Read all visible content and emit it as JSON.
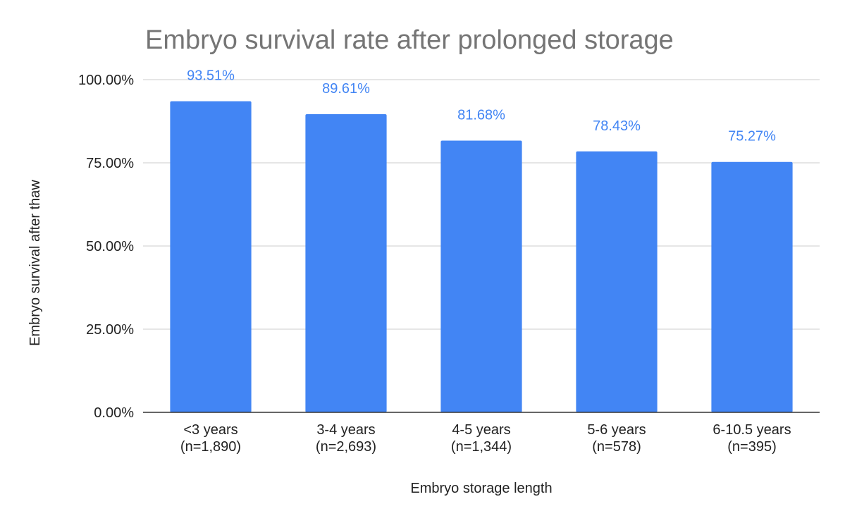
{
  "chart_data": {
    "type": "bar",
    "title": "Embryo survival rate after prolonged storage",
    "xlabel": "Embryo storage length",
    "ylabel": "Embryo survival after thaw",
    "categories": [
      [
        "<3 years",
        "(n=1,890)"
      ],
      [
        "3-4 years",
        "(n=2,693)"
      ],
      [
        "4-5 years",
        "(n=1,344)"
      ],
      [
        "5-6 years",
        "(n=578)"
      ],
      [
        "6-10.5 years",
        "(n=395)"
      ]
    ],
    "values": [
      93.51,
      89.61,
      81.68,
      78.43,
      75.27
    ],
    "value_labels": [
      "93.51%",
      "89.61%",
      "81.68%",
      "78.43%",
      "75.27%"
    ],
    "ylim": [
      0,
      100
    ],
    "y_ticks": [
      0,
      25,
      50,
      75,
      100
    ],
    "y_tick_labels": [
      "0.00%",
      "25.00%",
      "50.00%",
      "75.00%",
      "100.00%"
    ],
    "grid": true,
    "legend": "none",
    "bar_color": "#4285f4"
  }
}
